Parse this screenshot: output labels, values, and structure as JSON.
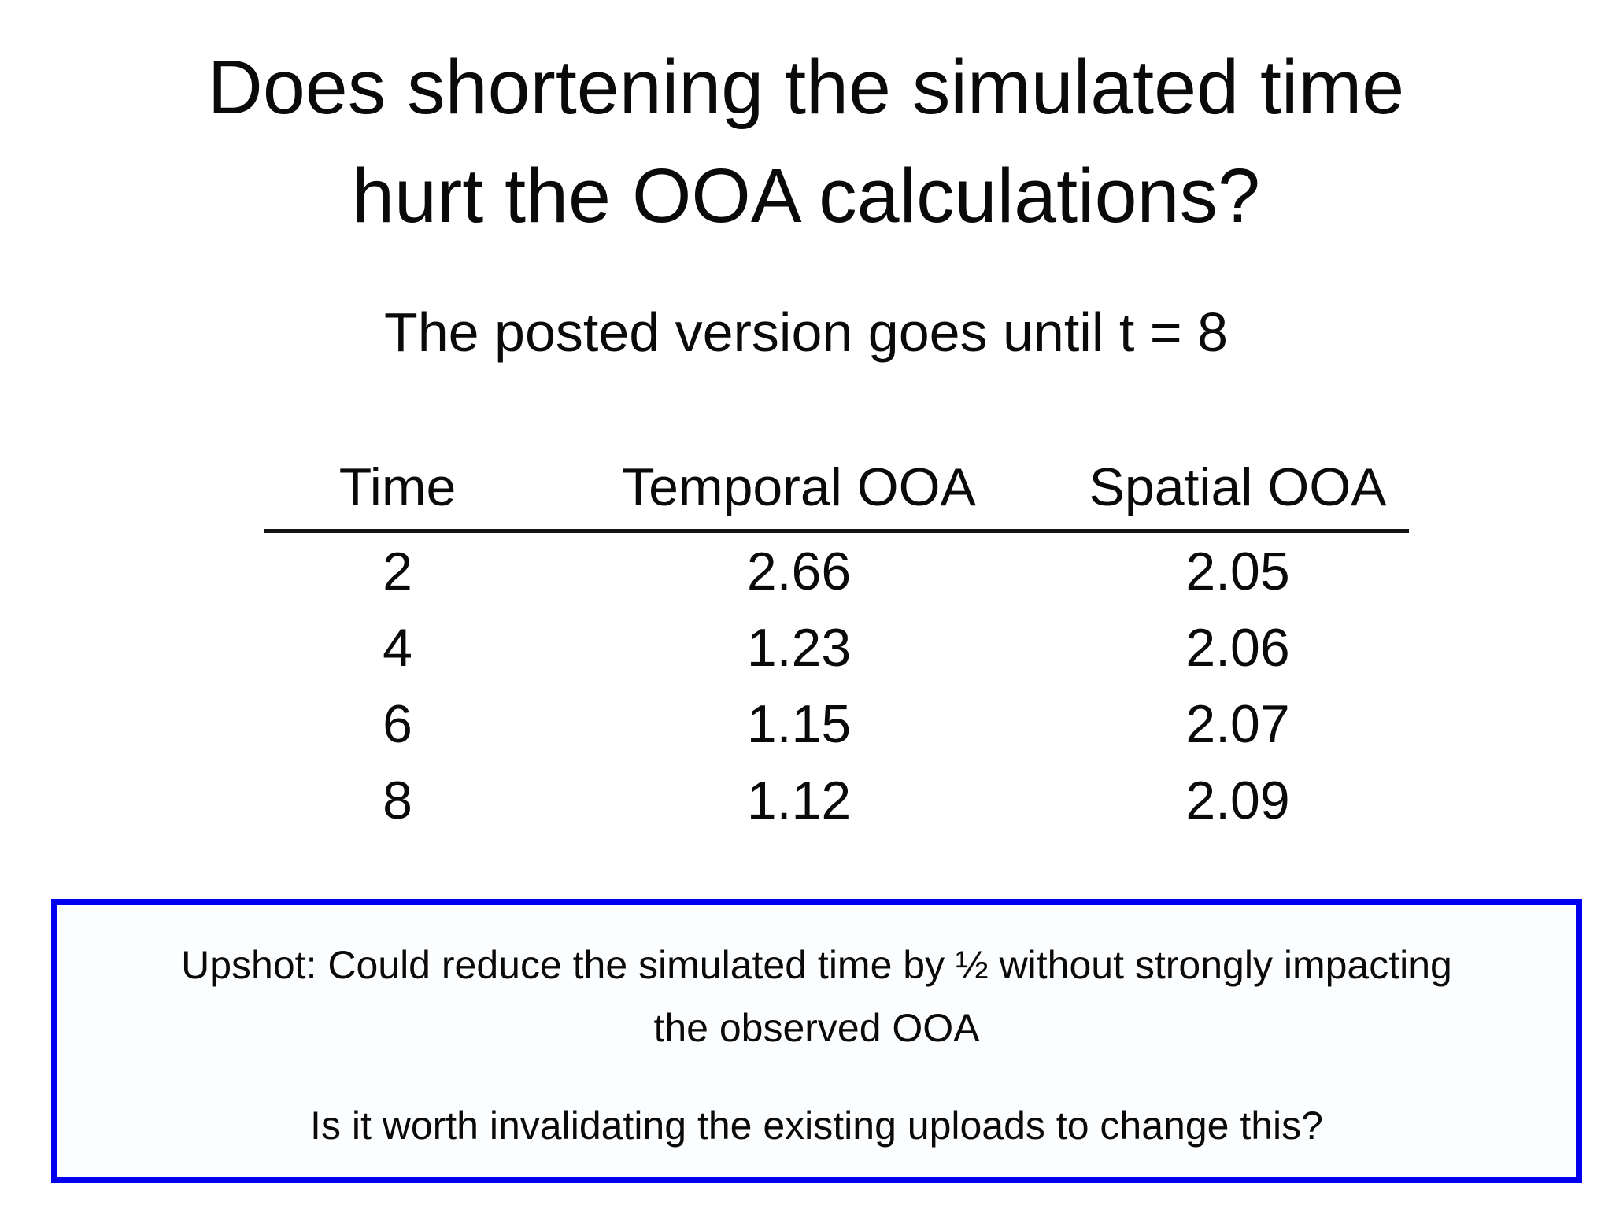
{
  "slide": {
    "background_color": "#ffffff",
    "text_color": "#0a0a0a",
    "title": {
      "line1": "Does shortening the simulated time",
      "line2": "hurt the OOA calculations?"
    },
    "subtitle": "The posted version goes until t = 8",
    "table": {
      "headers": [
        "Time",
        "Temporal OOA",
        "Spatial OOA"
      ],
      "rows": [
        [
          "2",
          "2.66",
          "2.05"
        ],
        [
          "4",
          "1.23",
          "2.06"
        ],
        [
          "6",
          "1.15",
          "2.07"
        ],
        [
          "8",
          "1.12",
          "2.09"
        ]
      ],
      "rule_color": "#141414"
    },
    "callout": {
      "border_color": "#0000ee",
      "upshot": "Upshot: Could reduce the simulated time by ½ without strongly impacting the observed OOA",
      "question": "Is it worth invalidating the existing uploads to change this?"
    }
  }
}
